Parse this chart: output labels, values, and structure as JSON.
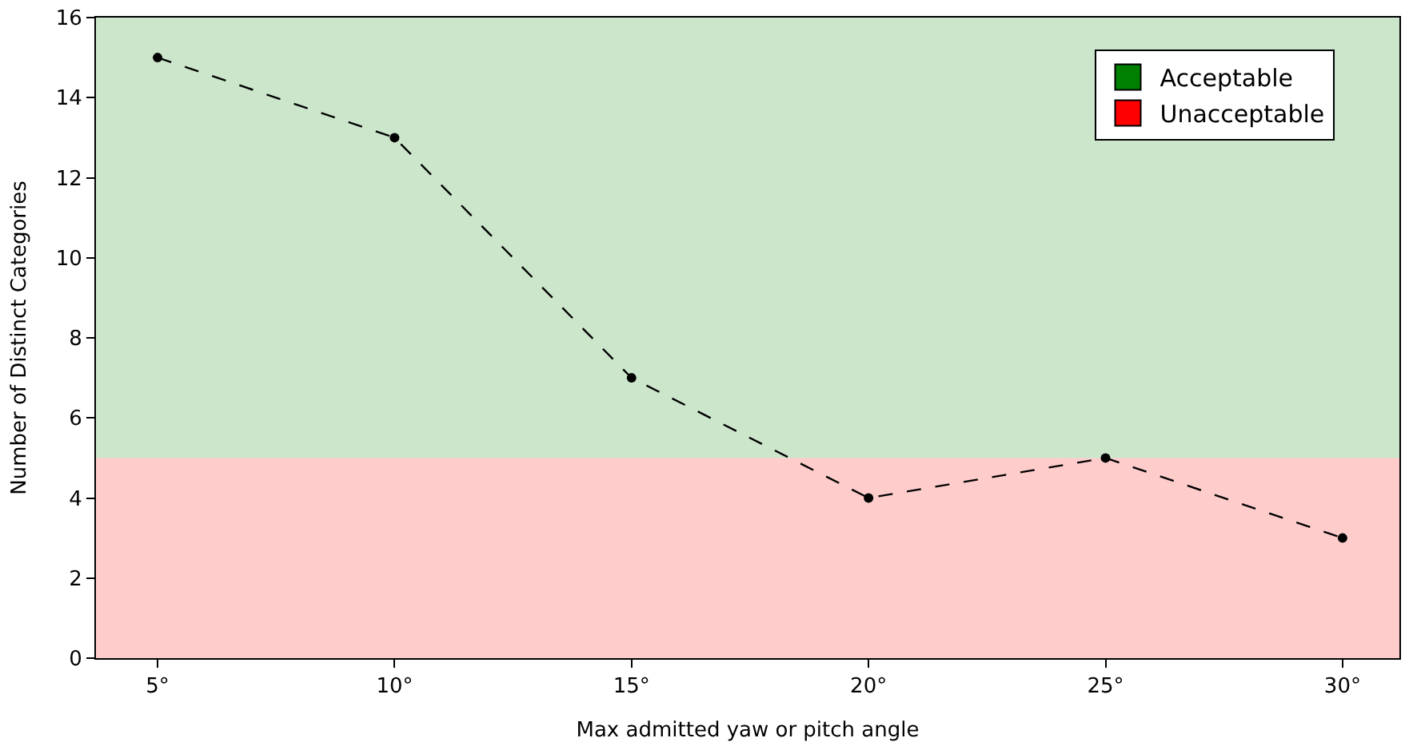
{
  "chart_data": {
    "type": "line",
    "xlabel": "Max admitted yaw or pitch angle",
    "ylabel": "Number of Distinct Categories",
    "x": [
      5,
      10,
      15,
      20,
      25,
      30
    ],
    "series": [
      {
        "color": "#000000",
        "values": [
          15,
          13,
          7,
          4,
          5,
          3
        ]
      }
    ],
    "xlim": [
      3.7,
      31.2
    ],
    "xticks": [
      {
        "value": 5,
        "label": "5°"
      },
      {
        "value": 10,
        "label": "10°"
      },
      {
        "value": 15,
        "label": "15°"
      },
      {
        "value": 20,
        "label": "20°"
      },
      {
        "value": 25,
        "label": "25°"
      },
      {
        "value": 30,
        "label": "30°"
      }
    ],
    "ylim": [
      0,
      16
    ],
    "yticks": [
      0,
      2,
      4,
      6,
      8,
      10,
      12,
      14,
      16
    ],
    "bands": [
      {
        "axis": "y",
        "from": 5,
        "to": 16,
        "label": "Acceptable",
        "color": "#008000"
      },
      {
        "axis": "y",
        "from": 0,
        "to": 5,
        "label": "Unacceptable",
        "color": "#ff0000"
      }
    ],
    "marker": "circle",
    "line_style": "dashed",
    "grid": false,
    "legend": "top right"
  }
}
